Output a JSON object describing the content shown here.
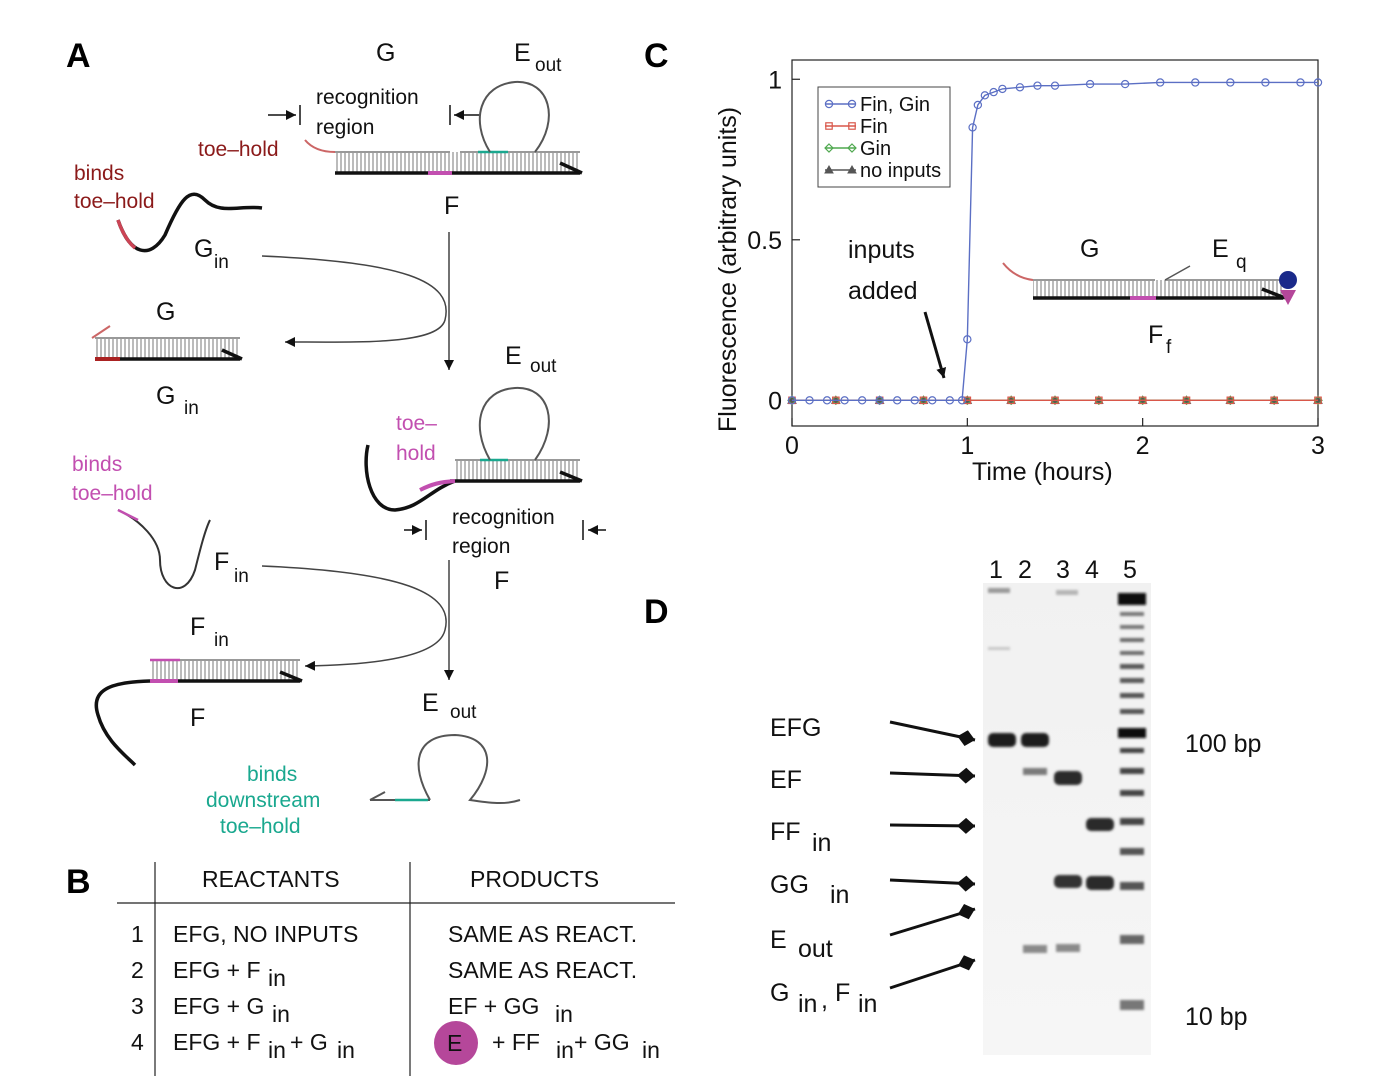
{
  "panels": {
    "a": "A",
    "b": "B",
    "c": "C",
    "d": "D"
  },
  "panel_a": {
    "g": "G",
    "e": "E",
    "out": "out",
    "recognition": "recognition",
    "region": "region",
    "toe_hold": "toe–hold",
    "binds": "binds",
    "f": "F",
    "in": "in",
    "toe": "toe–",
    "hold": "hold",
    "downstream": "downstream"
  },
  "panel_b": {
    "header_reactants": "REACTANTS",
    "header_products": "PRODUCTS",
    "rows": [
      {
        "num": "1",
        "reactants": "EFG, NO INPUTS",
        "products": "SAME AS REACT."
      },
      {
        "num": "2",
        "reactants": "EFG + F",
        "products": "SAME AS REACT."
      },
      {
        "num": "3",
        "reactants": "EFG + G",
        "products": "EF + GG"
      },
      {
        "num": "4",
        "reactants": "EFG + F",
        "products": "+ FF"
      }
    ],
    "in": "in",
    "g_part": "+ G",
    "gg_part": "+ GG",
    "e_circle": "E",
    "colors": {
      "e_circle": "#b5479a"
    }
  },
  "chart_data": {
    "type": "line",
    "xlabel": "Time (hours)",
    "ylabel": "Fluorescence (arbitrary units)",
    "xlim": [
      0,
      3
    ],
    "ylim": [
      -0.08,
      1.06
    ],
    "xticks": [
      "0",
      "1",
      "2",
      "3"
    ],
    "yticks": [
      "0",
      "0.5",
      "1"
    ],
    "legend_position": "top-left",
    "annotation": [
      "inputs",
      "added"
    ],
    "inset": {
      "g": "G",
      "e": "E",
      "q": "q",
      "f": "F",
      "fsub": "f"
    },
    "series": [
      {
        "name": "Fin, Gin",
        "color": "#5b6fc4",
        "marker": "circle",
        "x": [
          0.0,
          0.1,
          0.2,
          0.3,
          0.4,
          0.5,
          0.6,
          0.7,
          0.8,
          0.9,
          0.97,
          1.0,
          1.03,
          1.06,
          1.1,
          1.15,
          1.2,
          1.3,
          1.4,
          1.5,
          1.7,
          1.9,
          2.1,
          2.3,
          2.5,
          2.7,
          2.9,
          3.0
        ],
        "y": [
          0.0,
          0.0,
          0.0,
          0.0,
          0.0,
          0.0,
          0.0,
          0.0,
          0.0,
          0.0,
          0.0,
          0.19,
          0.85,
          0.92,
          0.95,
          0.96,
          0.97,
          0.975,
          0.98,
          0.98,
          0.985,
          0.985,
          0.99,
          0.99,
          0.99,
          0.99,
          0.99,
          0.99
        ]
      },
      {
        "name": "Fin",
        "color": "#d9574a",
        "marker": "square",
        "x": [
          0.0,
          0.25,
          0.5,
          0.75,
          1.0,
          1.25,
          1.5,
          1.75,
          2.0,
          2.25,
          2.5,
          2.75,
          3.0
        ],
        "y": [
          0.0,
          0.0,
          0.0,
          0.0,
          0.0,
          0.0,
          0.0,
          0.0,
          0.0,
          0.0,
          0.0,
          0.0,
          0.0
        ]
      },
      {
        "name": "Gin",
        "color": "#4fa84f",
        "marker": "diamond",
        "x": [
          0.0,
          0.25,
          0.5,
          0.75,
          1.0,
          1.25,
          1.5,
          1.75,
          2.0,
          2.25,
          2.5,
          2.75,
          3.0
        ],
        "y": [
          0.0,
          0.0,
          0.0,
          0.0,
          0.0,
          0.0,
          0.0,
          0.0,
          0.0,
          0.0,
          0.0,
          0.0,
          0.0
        ]
      },
      {
        "name": "no inputs",
        "color": "#555555",
        "marker": "triangle",
        "x": [
          0.0,
          0.25,
          0.5,
          0.75,
          1.0,
          1.25,
          1.5,
          1.75,
          2.0,
          2.25,
          2.5,
          2.75,
          3.0
        ],
        "y": [
          0.0,
          0.0,
          0.0,
          0.0,
          0.0,
          0.0,
          0.0,
          0.0,
          0.0,
          0.0,
          0.0,
          0.0,
          0.0
        ]
      }
    ]
  },
  "panel_d": {
    "lanes": [
      "1",
      "2",
      "3",
      "4",
      "5"
    ],
    "bands": [
      "EFG",
      "EF",
      "FF",
      "GG",
      "E",
      "G"
    ],
    "in": "in",
    "out": "out",
    "fin": "F",
    "comma": ",",
    "bp_100": "100 bp",
    "bp_10": "10 bp"
  }
}
